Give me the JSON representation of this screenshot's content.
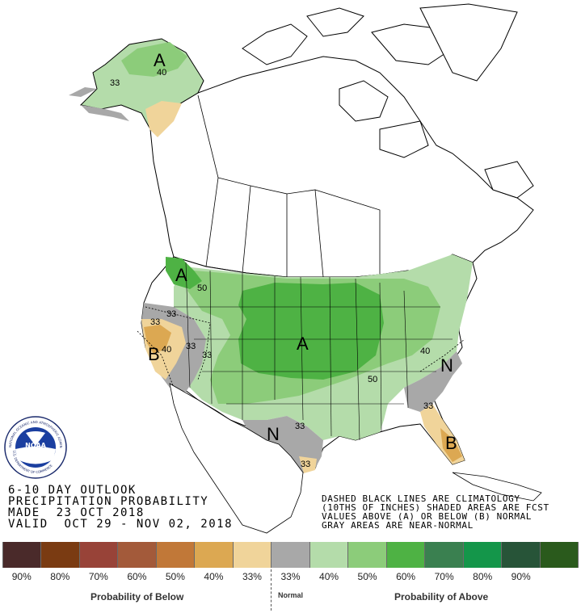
{
  "outlook": {
    "line1": "6-10 DAY OUTLOOK",
    "line2": "PRECIPITATION PROBABILITY",
    "line3": "MADE  23 OCT 2018",
    "line4": "VALID  OCT 29 - NOV 02, 2018"
  },
  "notes": {
    "line1": "DASHED BLACK LINES ARE CLIMATOLOGY",
    "line2": "(10THS OF INCHES) SHADED AREAS ARE FCST",
    "line3": "VALUES ABOVE (A) OR BELOW (B) NORMAL",
    "line4": "GRAY AREAS ARE NEAR-NORMAL"
  },
  "logo": {
    "center_text": "NOAA",
    "ring_text": "NATIONAL OCEANIC AND ATMOSPHERIC ADMINISTRATION",
    "ring_text_bottom": "U.S. DEPARTMENT OF COMMERCE"
  },
  "map_labels": {
    "alaska_a": "A",
    "alaska_40": "40",
    "alaska_33": "33",
    "nw_a": "A",
    "nw_50": "50",
    "nv_33": "33",
    "ca_33": "33",
    "ca_b": "B",
    "ca_40": "40",
    "gb_33a": "33",
    "gb_33b": "33",
    "central_a": "A",
    "central_50": "50",
    "east_40": "40",
    "se_n": "N",
    "se_33": "33",
    "fl_b": "B",
    "tx_n": "N",
    "tx_33a": "33",
    "tx_33b": "33"
  },
  "legend": {
    "colors": [
      "#4a2a2a",
      "#7a3b12",
      "#984338",
      "#a35a3a",
      "#c17838",
      "#dca852",
      "#f0d49a",
      "#a8a8a8",
      "#b4dcaa",
      "#8ccc7a",
      "#4eb244",
      "#3a8050",
      "#14964a",
      "#275438",
      "#2a5a1c"
    ],
    "labels": [
      "90%",
      "80%",
      "70%",
      "60%",
      "50%",
      "40%",
      "33%",
      "33%",
      "40%",
      "50%",
      "60%",
      "70%",
      "80%",
      "90%"
    ],
    "below_caption": "Probability of Below",
    "normal_caption": "Normal",
    "above_caption": "Probability of Above"
  }
}
